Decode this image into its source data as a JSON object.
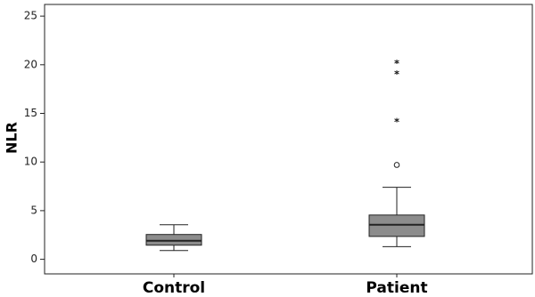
{
  "chart_data": {
    "type": "box",
    "y_label": "NLR",
    "categories": [
      "Control",
      "Patient"
    ],
    "color": "#8c8c8c",
    "ylim": [
      -1.5,
      26.2
    ],
    "yticks": [
      0,
      5,
      10,
      15,
      20,
      25
    ],
    "boxes": [
      {
        "whisker_low": 0.9,
        "q1": 1.45,
        "median": 1.9,
        "q3": 2.55,
        "whisker_high": 3.55,
        "outliers": [],
        "extremes": []
      },
      {
        "whisker_low": 1.3,
        "q1": 2.35,
        "median": 3.55,
        "q3": 4.55,
        "whisker_high": 7.4,
        "outliers": [
          9.7
        ],
        "extremes": [
          14.3,
          19.2,
          20.3
        ]
      }
    ]
  }
}
